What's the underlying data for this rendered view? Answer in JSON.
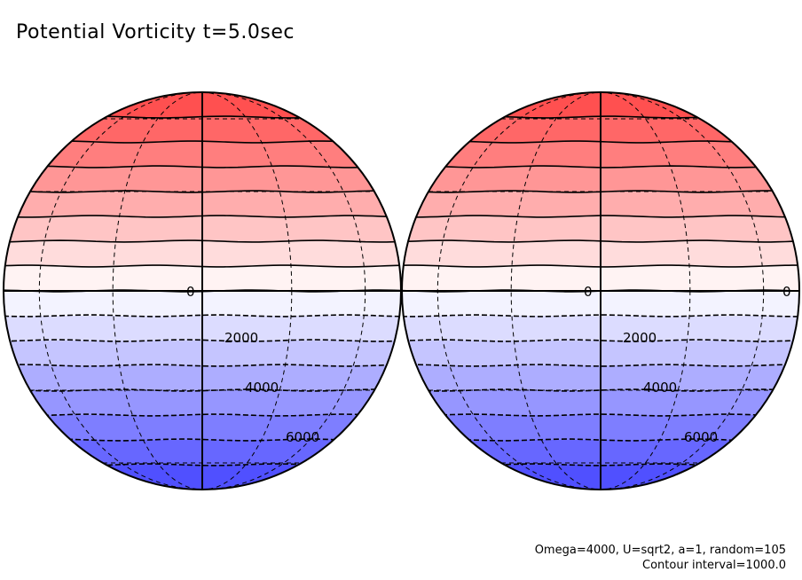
{
  "title": "Potential Vorticity t=5.0sec",
  "footer": {
    "params": "Omega=4000, U=sqrt2, a=1, random=105",
    "contour_note": "Contour interval=1000.0"
  },
  "chart_data": {
    "type": "contour",
    "projection": "orthographic (two hemispheres)",
    "title": "Potential Vorticity t=5.0sec",
    "contour_interval": 1000.0,
    "levels": [
      -8000,
      -7000,
      -6000,
      -5000,
      -4000,
      -3000,
      -2000,
      -1000,
      0,
      1000,
      2000,
      3000,
      4000,
      5000,
      6000,
      7000
    ],
    "negative_levels_dashed": false,
    "colormap": {
      "positive_north": "#ff4444",
      "zero": "#ffffff",
      "negative_south": "#4444ff"
    },
    "labels": [
      {
        "text": "0",
        "value": 0
      },
      {
        "text": "2000",
        "value": 2000
      },
      {
        "text": "4000",
        "value": 4000
      },
      {
        "text": "6000",
        "value": 6000
      }
    ],
    "hemispheres": [
      {
        "name": "left",
        "labels": [
          "0",
          "2000",
          "4000",
          "6000"
        ]
      },
      {
        "name": "right",
        "labels": [
          "0",
          "0",
          "2000",
          "4000",
          "6000"
        ]
      }
    ]
  }
}
